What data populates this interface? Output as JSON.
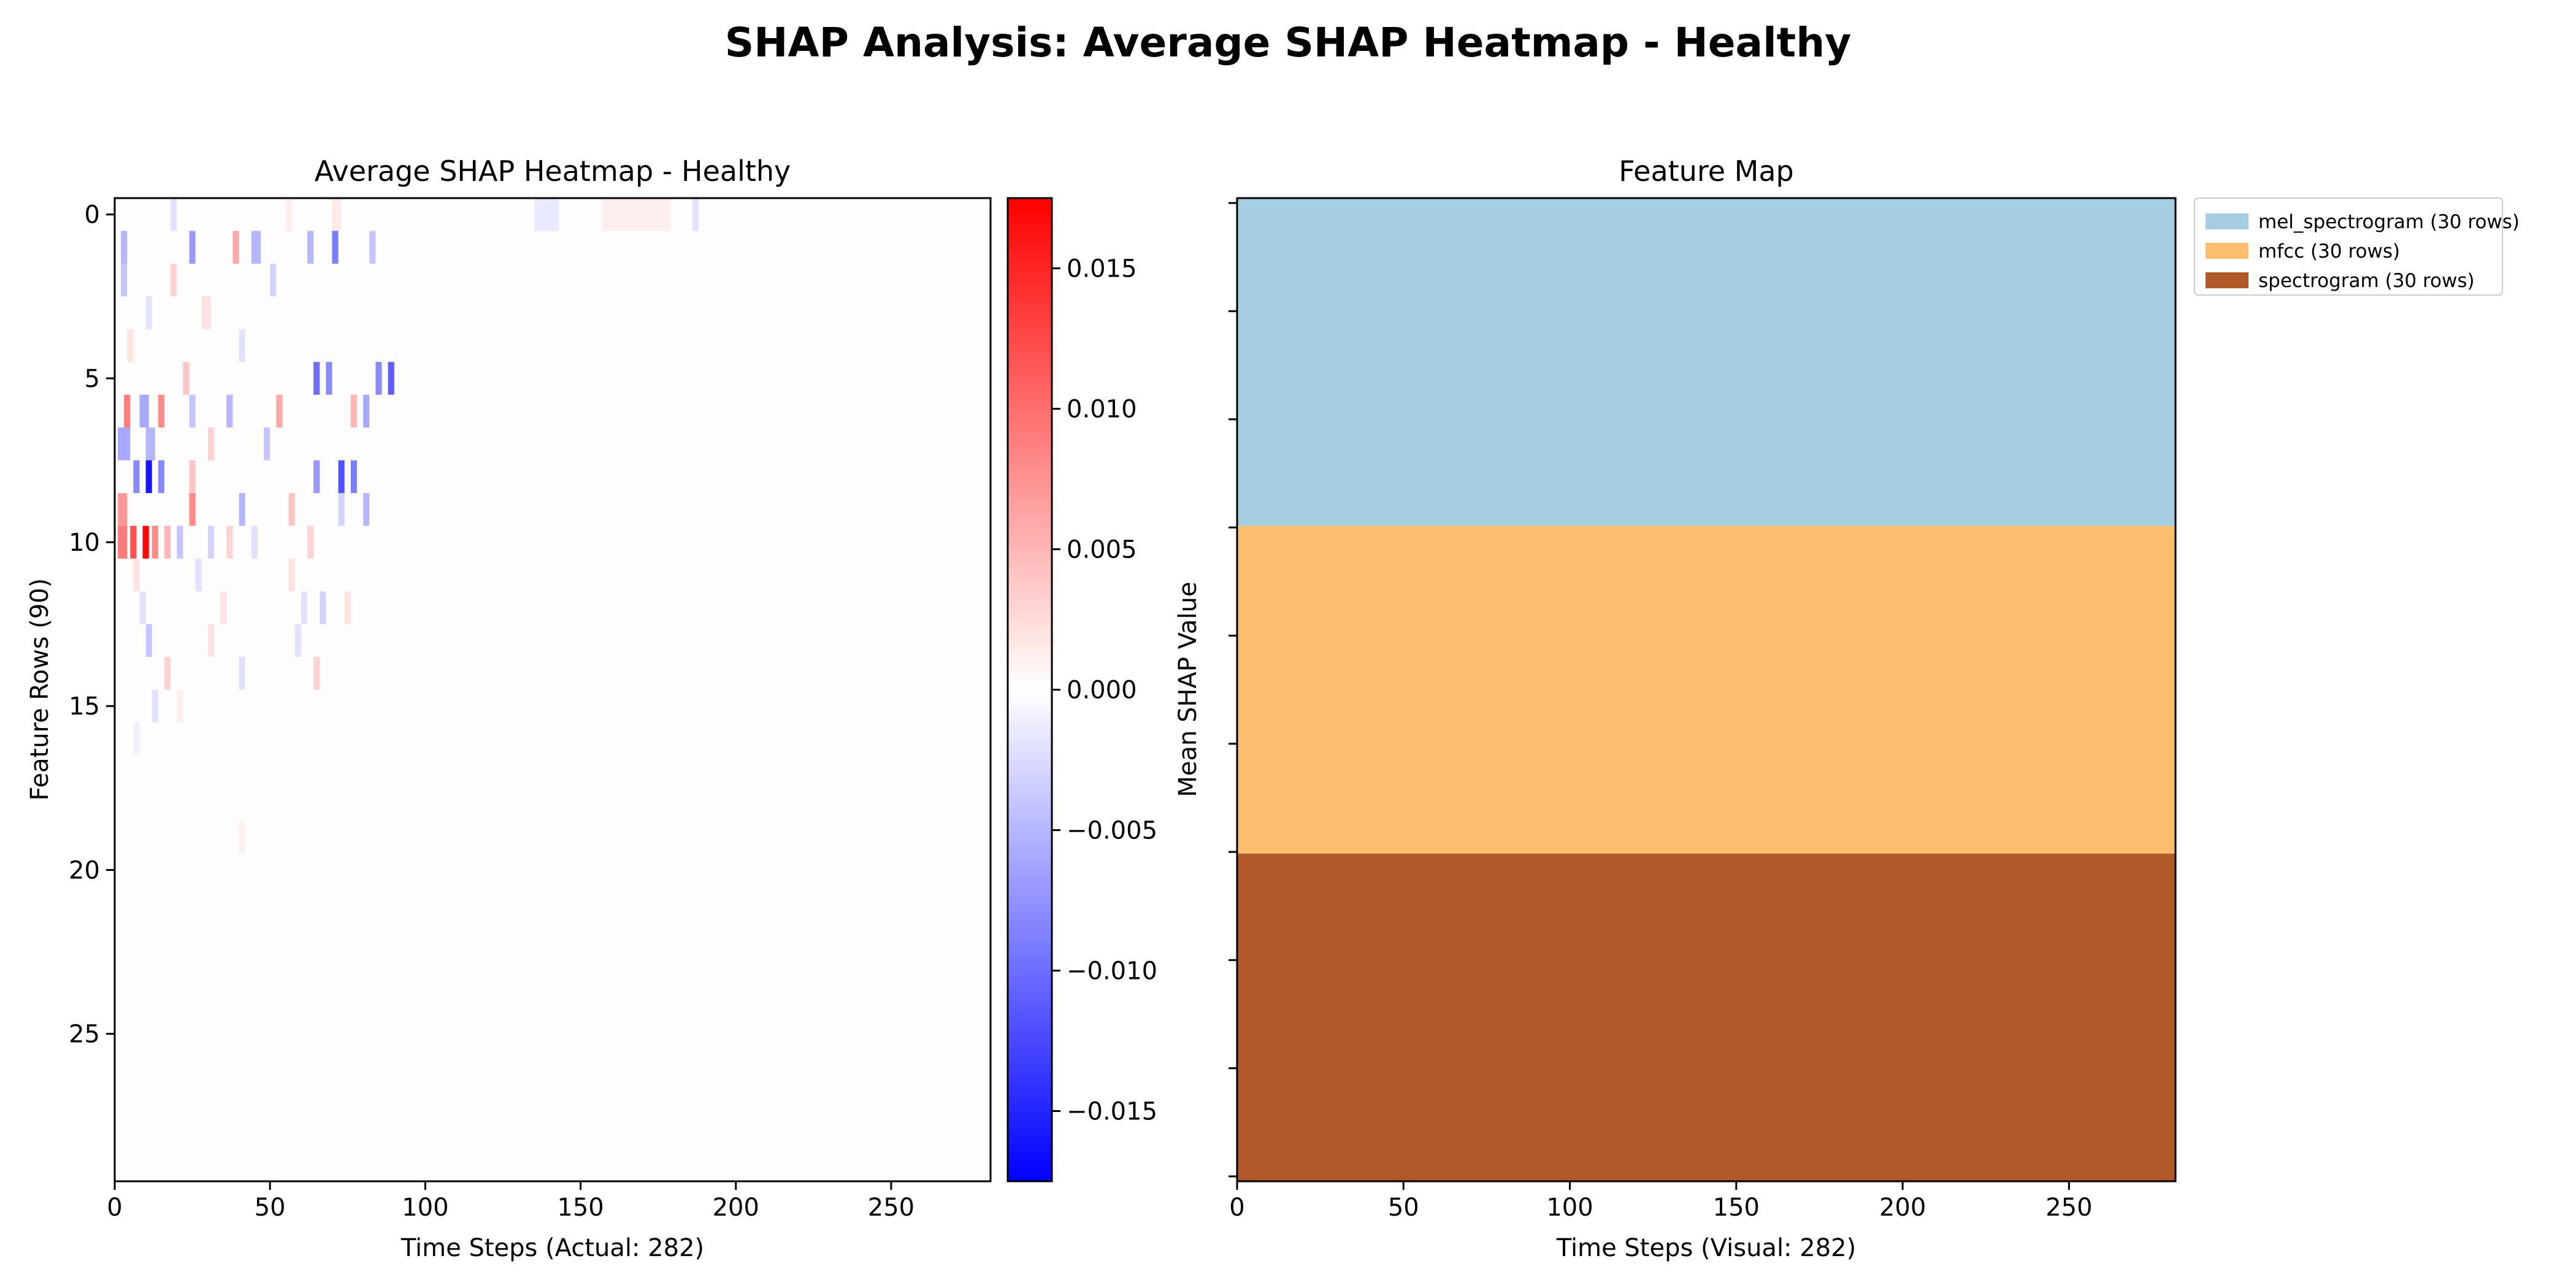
{
  "figure": {
    "title": "SHAP Analysis: Average SHAP Heatmap - Healthy"
  },
  "chart_data": [
    {
      "type": "heatmap",
      "title": "Average SHAP Heatmap - Healthy",
      "xlabel": "Time Steps (Actual: 282)",
      "ylabel": "Feature Rows (90)",
      "x_ticks": [
        0,
        50,
        100,
        150,
        200,
        250
      ],
      "y_ticks": [
        0,
        5,
        10,
        15,
        20,
        25
      ],
      "xlim": [
        0,
        282
      ],
      "ylim": [
        29.5,
        -0.5
      ],
      "rows_visible": 30,
      "colormap": "bwr",
      "colorbar": {
        "ticks": [
          0.015,
          0.01,
          0.005,
          0.0,
          -0.005,
          -0.01,
          -0.015
        ],
        "tick_labels": [
          "0.015",
          "0.010",
          "0.005",
          "0.000",
          "−0.005",
          "−0.010",
          "−0.015"
        ],
        "vmin": -0.0175,
        "vmax": 0.0175
      },
      "cells": [
        {
          "row": 0,
          "t": 18,
          "w": 2,
          "v": -0.002
        },
        {
          "row": 0,
          "t": 55,
          "w": 2,
          "v": 0.001
        },
        {
          "row": 0,
          "t": 70,
          "w": 3,
          "v": 0.0015
        },
        {
          "row": 0,
          "t": 135,
          "w": 8,
          "v": -0.0015
        },
        {
          "row": 0,
          "t": 157,
          "w": 22,
          "v": 0.0012
        },
        {
          "row": 0,
          "t": 186,
          "w": 2,
          "v": -0.002
        },
        {
          "row": 1,
          "t": 2,
          "w": 2,
          "v": -0.005
        },
        {
          "row": 1,
          "t": 24,
          "w": 2,
          "v": -0.007
        },
        {
          "row": 1,
          "t": 38,
          "w": 2,
          "v": 0.006
        },
        {
          "row": 1,
          "t": 44,
          "w": 3,
          "v": -0.005
        },
        {
          "row": 1,
          "t": 62,
          "w": 2,
          "v": -0.005
        },
        {
          "row": 1,
          "t": 70,
          "w": 2,
          "v": -0.009
        },
        {
          "row": 1,
          "t": 82,
          "w": 2,
          "v": -0.004
        },
        {
          "row": 2,
          "t": 2,
          "w": 2,
          "v": -0.004
        },
        {
          "row": 2,
          "t": 18,
          "w": 2,
          "v": 0.003
        },
        {
          "row": 2,
          "t": 50,
          "w": 2,
          "v": -0.003
        },
        {
          "row": 3,
          "t": 10,
          "w": 2,
          "v": -0.002
        },
        {
          "row": 3,
          "t": 28,
          "w": 3,
          "v": 0.002
        },
        {
          "row": 4,
          "t": 4,
          "w": 2,
          "v": 0.002
        },
        {
          "row": 4,
          "t": 40,
          "w": 2,
          "v": -0.002
        },
        {
          "row": 5,
          "t": 22,
          "w": 2,
          "v": 0.004
        },
        {
          "row": 5,
          "t": 64,
          "w": 2,
          "v": -0.01
        },
        {
          "row": 5,
          "t": 68,
          "w": 2,
          "v": -0.008
        },
        {
          "row": 5,
          "t": 84,
          "w": 2,
          "v": -0.008
        },
        {
          "row": 5,
          "t": 88,
          "w": 2,
          "v": -0.011
        },
        {
          "row": 6,
          "t": 3,
          "w": 2,
          "v": 0.009
        },
        {
          "row": 6,
          "t": 8,
          "w": 3,
          "v": -0.006
        },
        {
          "row": 6,
          "t": 14,
          "w": 2,
          "v": 0.008
        },
        {
          "row": 6,
          "t": 24,
          "w": 2,
          "v": -0.004
        },
        {
          "row": 6,
          "t": 36,
          "w": 2,
          "v": -0.005
        },
        {
          "row": 6,
          "t": 52,
          "w": 2,
          "v": 0.006
        },
        {
          "row": 6,
          "t": 76,
          "w": 2,
          "v": 0.005
        },
        {
          "row": 6,
          "t": 80,
          "w": 2,
          "v": -0.006
        },
        {
          "row": 7,
          "t": 1,
          "w": 4,
          "v": -0.006
        },
        {
          "row": 7,
          "t": 10,
          "w": 3,
          "v": -0.005
        },
        {
          "row": 7,
          "t": 30,
          "w": 2,
          "v": 0.003
        },
        {
          "row": 7,
          "t": 48,
          "w": 2,
          "v": -0.004
        },
        {
          "row": 8,
          "t": 6,
          "w": 2,
          "v": -0.008
        },
        {
          "row": 8,
          "t": 10,
          "w": 2,
          "v": -0.016
        },
        {
          "row": 8,
          "t": 14,
          "w": 2,
          "v": -0.008
        },
        {
          "row": 8,
          "t": 24,
          "w": 2,
          "v": 0.004
        },
        {
          "row": 8,
          "t": 64,
          "w": 2,
          "v": -0.007
        },
        {
          "row": 8,
          "t": 72,
          "w": 2,
          "v": -0.012
        },
        {
          "row": 8,
          "t": 76,
          "w": 2,
          "v": -0.009
        },
        {
          "row": 9,
          "t": 1,
          "w": 3,
          "v": 0.007
        },
        {
          "row": 9,
          "t": 24,
          "w": 2,
          "v": 0.008
        },
        {
          "row": 9,
          "t": 40,
          "w": 2,
          "v": -0.005
        },
        {
          "row": 9,
          "t": 56,
          "w": 2,
          "v": 0.004
        },
        {
          "row": 9,
          "t": 72,
          "w": 2,
          "v": -0.003
        },
        {
          "row": 9,
          "t": 80,
          "w": 2,
          "v": -0.005
        },
        {
          "row": 10,
          "t": 1,
          "w": 3,
          "v": 0.009
        },
        {
          "row": 10,
          "t": 5,
          "w": 2,
          "v": 0.012
        },
        {
          "row": 10,
          "t": 9,
          "w": 2,
          "v": 0.017
        },
        {
          "row": 10,
          "t": 12,
          "w": 2,
          "v": 0.008
        },
        {
          "row": 10,
          "t": 16,
          "w": 2,
          "v": 0.005
        },
        {
          "row": 10,
          "t": 20,
          "w": 2,
          "v": -0.004
        },
        {
          "row": 10,
          "t": 30,
          "w": 2,
          "v": -0.003
        },
        {
          "row": 10,
          "t": 36,
          "w": 2,
          "v": 0.003
        },
        {
          "row": 10,
          "t": 44,
          "w": 2,
          "v": -0.002
        },
        {
          "row": 10,
          "t": 62,
          "w": 2,
          "v": 0.003
        },
        {
          "row": 11,
          "t": 6,
          "w": 2,
          "v": 0.002
        },
        {
          "row": 11,
          "t": 26,
          "w": 2,
          "v": -0.002
        },
        {
          "row": 11,
          "t": 56,
          "w": 2,
          "v": 0.002
        },
        {
          "row": 12,
          "t": 8,
          "w": 2,
          "v": -0.002
        },
        {
          "row": 12,
          "t": 34,
          "w": 2,
          "v": 0.002
        },
        {
          "row": 12,
          "t": 60,
          "w": 2,
          "v": -0.002
        },
        {
          "row": 12,
          "t": 66,
          "w": 2,
          "v": -0.003
        },
        {
          "row": 12,
          "t": 74,
          "w": 2,
          "v": 0.002
        },
        {
          "row": 13,
          "t": 10,
          "w": 2,
          "v": -0.004
        },
        {
          "row": 13,
          "t": 30,
          "w": 2,
          "v": 0.002
        },
        {
          "row": 13,
          "t": 58,
          "w": 2,
          "v": -0.002
        },
        {
          "row": 14,
          "t": 16,
          "w": 2,
          "v": 0.003
        },
        {
          "row": 14,
          "t": 40,
          "w": 2,
          "v": -0.002
        },
        {
          "row": 14,
          "t": 64,
          "w": 2,
          "v": 0.003
        },
        {
          "row": 15,
          "t": 12,
          "w": 2,
          "v": -0.002
        },
        {
          "row": 15,
          "t": 20,
          "w": 2,
          "v": 0.001
        },
        {
          "row": 16,
          "t": 6,
          "w": 2,
          "v": -0.001
        },
        {
          "row": 19,
          "t": 40,
          "w": 2,
          "v": 0.001
        }
      ]
    },
    {
      "type": "bar",
      "title": "Feature Map",
      "xlabel": "Time Steps (Visual: 282)",
      "ylabel": "Mean SHAP Value",
      "x_ticks": [
        0,
        50,
        100,
        150,
        200,
        250
      ],
      "xlim": [
        0,
        282
      ],
      "y_tick_count": 10,
      "legend": {
        "placement": "outside-top-right"
      },
      "series": [
        {
          "name": "mel_spectrogram (30 rows)",
          "rows": 30,
          "color": "#a6cee3"
        },
        {
          "name": "mfcc (30 rows)",
          "rows": 30,
          "color": "#fdbf6f"
        },
        {
          "name": "spectrogram (30 rows)",
          "rows": 30,
          "color": "#b15928"
        }
      ]
    }
  ]
}
